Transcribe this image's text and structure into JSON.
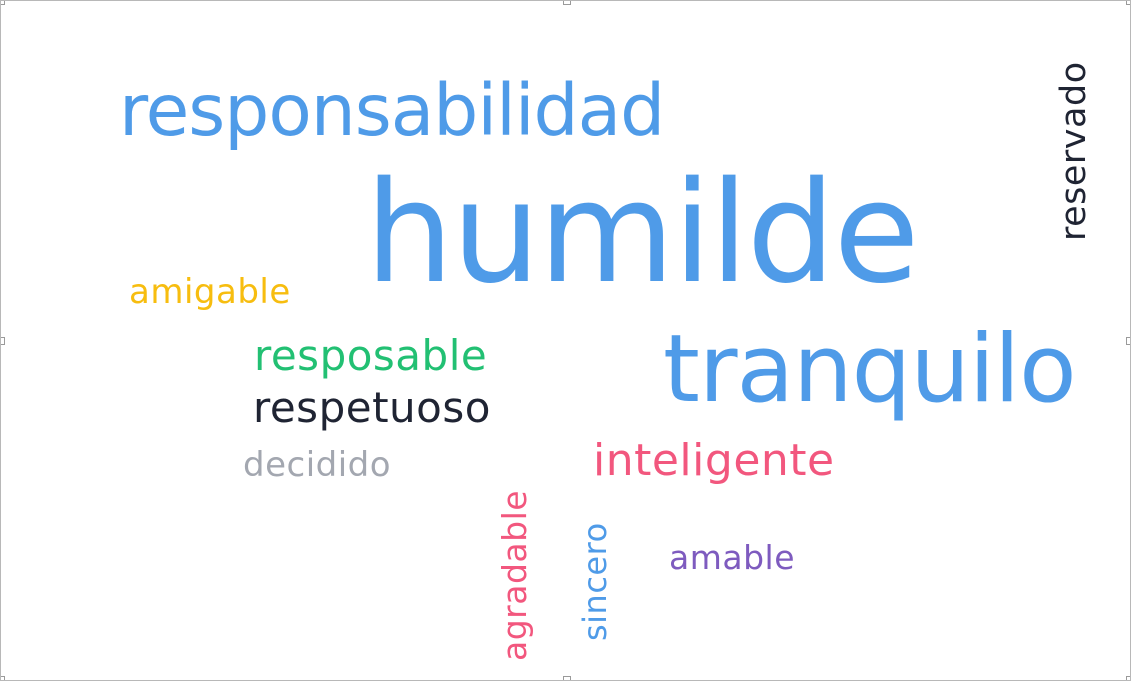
{
  "words": {
    "humilde": "humilde",
    "responsabilidad": "responsabilidad",
    "tranquilo": "tranquilo",
    "reservado": "reservado",
    "amigable": "amigable",
    "resposable": "resposable",
    "respetuoso": "respetuoso",
    "decidido": "decidido",
    "inteligente": "inteligente",
    "agradable": "agradable",
    "sincero": "sincero",
    "amable": "amable"
  },
  "colors": {
    "blue": "#4f9be8",
    "dark": "#1f2433",
    "yellow": "#f7bd0f",
    "green": "#22c073",
    "gray": "#a3a7b0",
    "pink": "#f2577e",
    "purple": "#7e5bbf"
  }
}
